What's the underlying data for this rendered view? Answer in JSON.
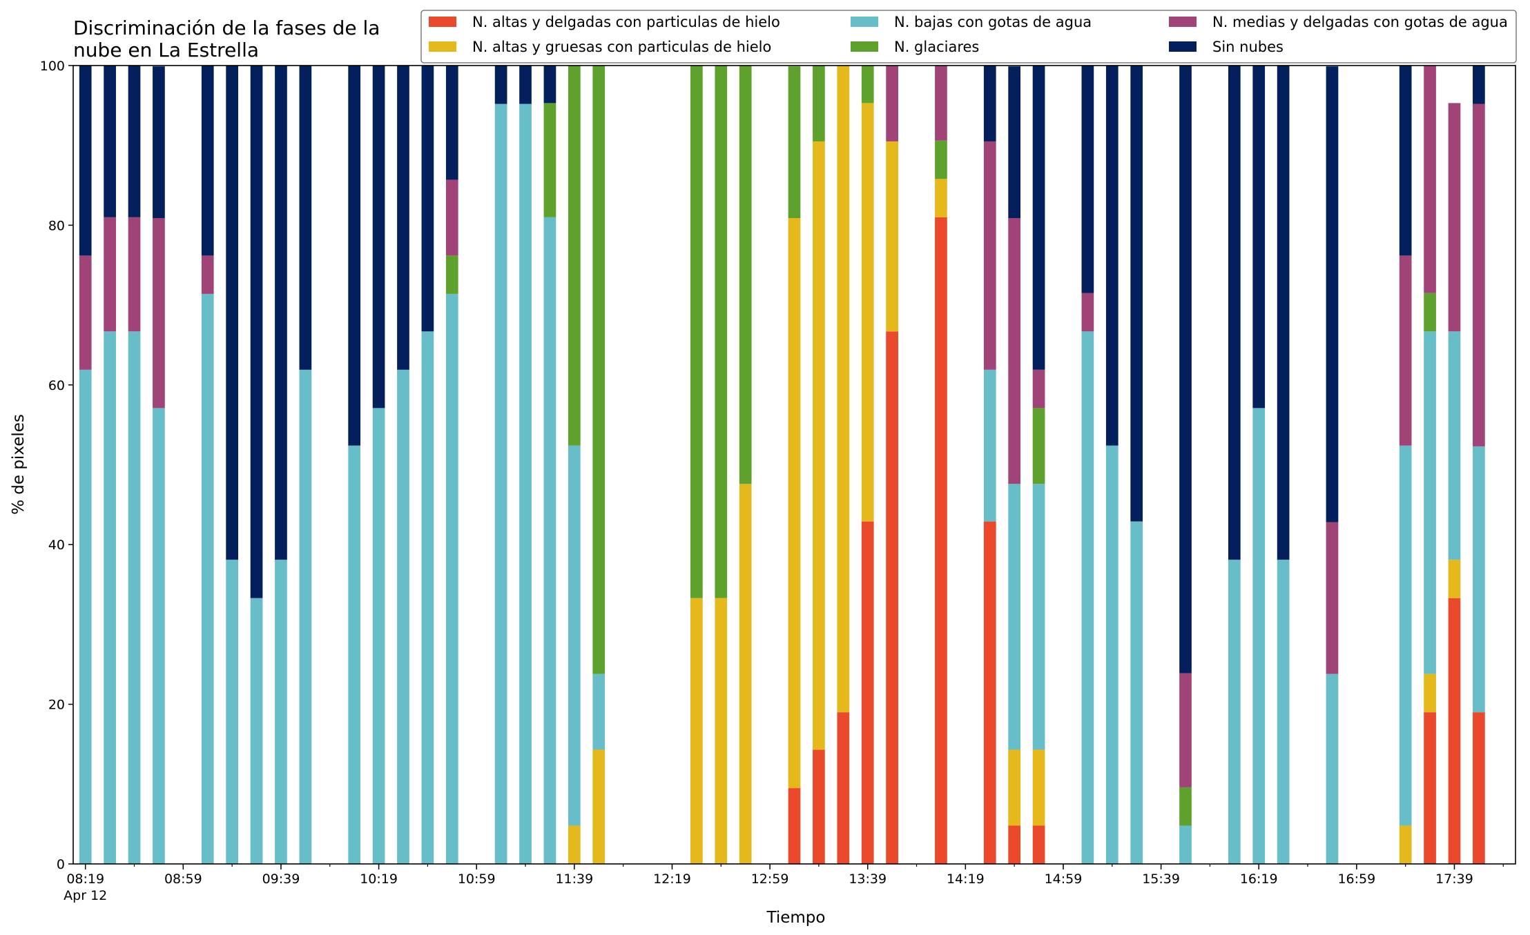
{
  "chart_data": {
    "type": "bar",
    "stacked": true,
    "title_lines": [
      "Discriminación de la fases de la",
      "nube en La Estrella"
    ],
    "xlabel": "Tiempo",
    "ylabel": "% de pixeles",
    "ylim": [
      0,
      100
    ],
    "yticks": [
      0,
      20,
      40,
      60,
      80,
      100
    ],
    "grid": false,
    "legend_position": "top-right",
    "xlim": [
      -0.5,
      58.5
    ],
    "x_tick_labels": [
      {
        "index": 0,
        "label": "08:19"
      },
      {
        "index": 4,
        "label": "08:59"
      },
      {
        "index": 8,
        "label": "09:39"
      },
      {
        "index": 12,
        "label": "10:19"
      },
      {
        "index": 16,
        "label": "10:59"
      },
      {
        "index": 20,
        "label": "11:39"
      },
      {
        "index": 24,
        "label": "12:19"
      },
      {
        "index": 28,
        "label": "12:59"
      },
      {
        "index": 32,
        "label": "13:39"
      },
      {
        "index": 36,
        "label": "14:19"
      },
      {
        "index": 40,
        "label": "14:59"
      },
      {
        "index": 44,
        "label": "15:39"
      },
      {
        "index": 48,
        "label": "16:19"
      },
      {
        "index": 52,
        "label": "16:59"
      },
      {
        "index": 56,
        "label": "17:39"
      }
    ],
    "x_date_label": "Apr 12",
    "series": [
      {
        "name": "N. altas y delgadas con particulas de hielo",
        "color": "#ea4a2b",
        "values": [
          0,
          0,
          0,
          0,
          0,
          0,
          0,
          0,
          0,
          0,
          0,
          0,
          0,
          0,
          0,
          0,
          0,
          0,
          0,
          0,
          0,
          0,
          0,
          0,
          0,
          0,
          0,
          0,
          0,
          9.5,
          14.3,
          19,
          42.9,
          66.7,
          0,
          81,
          0,
          42.9,
          4.8,
          4.8,
          0,
          0,
          0,
          0,
          0,
          0,
          0,
          0,
          0,
          0,
          0,
          0,
          0,
          0,
          0,
          19,
          33.3,
          19
        ]
      },
      {
        "name": "N. altas y gruesas con particulas de hielo",
        "color": "#e5b81b",
        "values": [
          0,
          0,
          0,
          0,
          0,
          0,
          0,
          0,
          0,
          0,
          0,
          0,
          0,
          0,
          0,
          0,
          0,
          0,
          0,
          0,
          4.8,
          14.3,
          0,
          0,
          0,
          33.3,
          33.3,
          47.6,
          0,
          71.4,
          76.2,
          81,
          52.4,
          23.8,
          0,
          4.8,
          0,
          0,
          9.5,
          9.5,
          0,
          0,
          0,
          0,
          0,
          0,
          0,
          0,
          0,
          0,
          0,
          0,
          0,
          0,
          4.8,
          4.8,
          4.8,
          0
        ]
      },
      {
        "name": "N. bajas con gotas de agua",
        "color": "#67bec9",
        "values": [
          61.9,
          66.7,
          66.7,
          57.1,
          0,
          71.4,
          38.1,
          33.3,
          38.1,
          61.9,
          0,
          52.4,
          57.1,
          61.9,
          66.7,
          71.4,
          0,
          95.2,
          95.2,
          81,
          47.6,
          9.5,
          0,
          0,
          0,
          0,
          0,
          0,
          0,
          0,
          0,
          0,
          0,
          0,
          0,
          0,
          0,
          19,
          33.3,
          33.3,
          0,
          66.7,
          52.4,
          42.9,
          0,
          4.8,
          0,
          38.1,
          57.1,
          38.1,
          0,
          23.8,
          0,
          0,
          47.6,
          42.9,
          28.6,
          33.3
        ]
      },
      {
        "name": "N. glaciares",
        "color": "#5ea22d",
        "values": [
          0,
          0,
          0,
          0,
          0,
          0,
          0,
          0,
          0,
          0,
          0,
          0,
          0,
          0,
          0,
          4.8,
          0,
          0,
          0,
          14.3,
          47.6,
          76.2,
          0,
          0,
          0,
          66.7,
          66.7,
          52.4,
          0,
          19,
          9.5,
          0,
          4.8,
          0,
          0,
          4.8,
          0,
          0,
          0,
          9.5,
          0,
          0,
          0,
          0,
          0,
          4.8,
          0,
          0,
          0,
          0,
          0,
          0,
          0,
          0,
          0,
          4.8,
          0,
          0
        ]
      },
      {
        "name": "N. medias y delgadas con gotas de agua",
        "color": "#a04478",
        "values": [
          14.3,
          14.3,
          14.3,
          23.8,
          0,
          4.8,
          0,
          0,
          0,
          0,
          0,
          0,
          0,
          0,
          0,
          9.5,
          0,
          0,
          0,
          0,
          0,
          0,
          0,
          0,
          0,
          0,
          0,
          0,
          0,
          0,
          0,
          0,
          0,
          9.5,
          0,
          9.5,
          0,
          28.6,
          33.3,
          4.8,
          0,
          4.8,
          0,
          0,
          0,
          14.3,
          0,
          0,
          0,
          0,
          0,
          19,
          0,
          0,
          23.8,
          28.6,
          28.6,
          42.9
        ]
      },
      {
        "name": "Sin nubes",
        "color": "#03205c",
        "values": [
          23.8,
          19,
          19,
          19,
          0,
          23.8,
          61.9,
          66.7,
          61.9,
          38.1,
          0,
          47.6,
          42.9,
          38.1,
          33.3,
          14.3,
          0,
          4.8,
          4.8,
          4.8,
          0,
          0,
          0,
          0,
          0,
          0,
          0,
          0,
          0,
          0,
          0,
          0,
          0,
          0,
          0,
          0,
          0,
          9.5,
          19,
          38.1,
          0,
          28.6,
          47.6,
          57.1,
          0,
          76.2,
          0,
          61.9,
          42.9,
          61.9,
          0,
          57.1,
          0,
          0,
          23.8,
          0,
          0,
          4.8
        ]
      }
    ],
    "legend_columns": [
      [
        0,
        1
      ],
      [
        2,
        3
      ],
      [
        4,
        5
      ]
    ]
  }
}
